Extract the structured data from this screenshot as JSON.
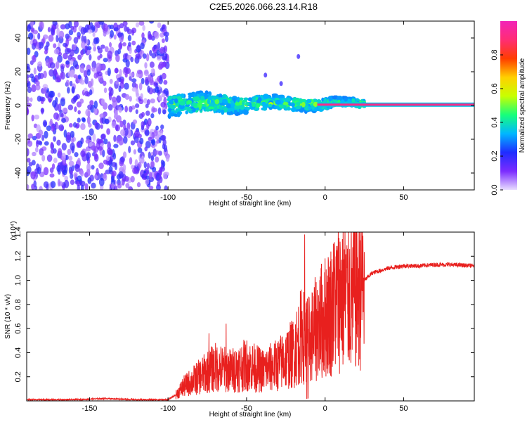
{
  "title": "C2E5.2026.066.23.14.R18",
  "chart_data": [
    {
      "type": "heatmap",
      "title": "C2E5.2026.066.23.14.R18",
      "xlabel": "Height of straight line (km)",
      "ylabel": "Frequency (Hz)",
      "xlim": [
        -190,
        95
      ],
      "ylim": [
        -50,
        50
      ],
      "xticks": [
        -150,
        -100,
        -50,
        0,
        50
      ],
      "yticks": [
        -40,
        -20,
        0,
        20,
        40
      ],
      "xtick_labels": [
        "-150",
        "-100",
        "-50",
        "0",
        "50"
      ],
      "ytick_labels": [
        "-40",
        "-20",
        "0",
        "20",
        "40"
      ],
      "colorbar": {
        "label": "Normalized spectral amplitude",
        "range": [
          0,
          1
        ],
        "ticks": [
          0.0,
          0.2,
          0.4,
          0.6,
          0.8
        ],
        "tick_labels": [
          "0.0",
          "0.2",
          "0.4",
          "0.6",
          "0.8"
        ],
        "colors": [
          "#e9ddff",
          "#7b2cff",
          "#1f2dff",
          "#00b7ff",
          "#17ff7a",
          "#c8ff00",
          "#ffd000",
          "#ff3d00",
          "#ff2d74",
          "#f224b8"
        ]
      },
      "regions": [
        {
          "name": "noise",
          "x_range": [
            -190,
            -100
          ],
          "freq_range": [
            -50,
            50
          ],
          "amplitude": 0.15
        },
        {
          "name": "signal-band",
          "x_range": [
            -100,
            25
          ],
          "freq_center": 1,
          "freq_halfwidth_hz": [
            6,
            2
          ],
          "amplitude": [
            0.3,
            0.55
          ]
        },
        {
          "name": "carrier-line",
          "x_range": [
            -20,
            95
          ],
          "freq_center": 0.5,
          "amplitude": 0.92
        }
      ]
    },
    {
      "type": "line",
      "xlabel": "Height of straight line (km)",
      "ylabel": "SNR (10 * v/v)",
      "y_multiplier_label": "(x10⁴)",
      "xlim": [
        -190,
        95
      ],
      "ylim": [
        0,
        1.4
      ],
      "xticks": [
        -150,
        -100,
        -50,
        0,
        50
      ],
      "yticks": [
        0.2,
        0.4,
        0.6,
        0.8,
        1.0,
        1.2,
        1.4
      ],
      "xtick_labels": [
        "-150",
        "-100",
        "-50",
        "0",
        "50"
      ],
      "ytick_labels": [
        "0.2",
        "0.4",
        "0.6",
        "0.8",
        "1.0",
        "1.2",
        "1.4"
      ],
      "series": [
        {
          "name": "SNR",
          "color": "#e8201e",
          "x": [
            -190,
            -160,
            -140,
            -120,
            -100,
            -95,
            -90,
            -80,
            -70,
            -60,
            -50,
            -40,
            -30,
            -20,
            -15,
            -10,
            -5,
            0,
            5,
            10,
            15,
            20,
            25,
            30,
            40,
            50,
            60,
            70,
            80,
            95
          ],
          "y": [
            0.01,
            0.01,
            0.02,
            0.01,
            0.01,
            0.05,
            0.12,
            0.2,
            0.28,
            0.25,
            0.3,
            0.25,
            0.3,
            0.4,
            0.55,
            0.5,
            0.62,
            0.7,
            0.78,
            0.9,
            0.85,
            0.92,
            1.0,
            1.06,
            1.1,
            1.12,
            1.12,
            1.13,
            1.13,
            1.12
          ],
          "spikes": [
            {
              "x": -74,
              "y": 0.56
            },
            {
              "x": -63,
              "y": 0.64
            },
            {
              "x": -13,
              "y": 1.38
            },
            {
              "x": 6,
              "y": 1.28
            }
          ]
        }
      ]
    }
  ]
}
